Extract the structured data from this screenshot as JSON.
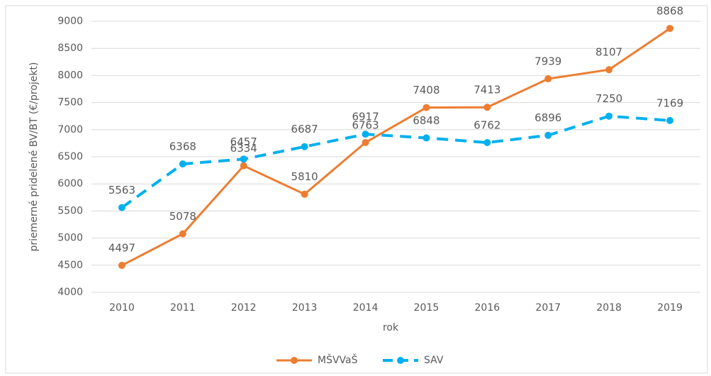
{
  "chart_data": {
    "type": "line",
    "categories": [
      "2010",
      "2011",
      "2012",
      "2013",
      "2014",
      "2015",
      "2016",
      "2017",
      "2018",
      "2019"
    ],
    "series": [
      {
        "name": "MŠVVaŠ",
        "color": "#ed7d31",
        "dashed": false,
        "values": [
          4497,
          5078,
          6334,
          5810,
          6763,
          7408,
          7413,
          7939,
          8107,
          8868
        ]
      },
      {
        "name": "SAV",
        "color": "#00b0f0",
        "dashed": true,
        "values": [
          5563,
          6368,
          6457,
          6687,
          6917,
          6848,
          6762,
          6896,
          7250,
          7169
        ]
      }
    ],
    "xlabel": "rok",
    "ylabel": "priemerné pridelené BV/BT (€/projekt)",
    "ylim": [
      4000,
      9000
    ],
    "yticks": [
      4000,
      4500,
      5000,
      5500,
      6000,
      6500,
      7000,
      7500,
      8000,
      8500,
      9000
    ],
    "grid": true,
    "legend": "bottom"
  }
}
